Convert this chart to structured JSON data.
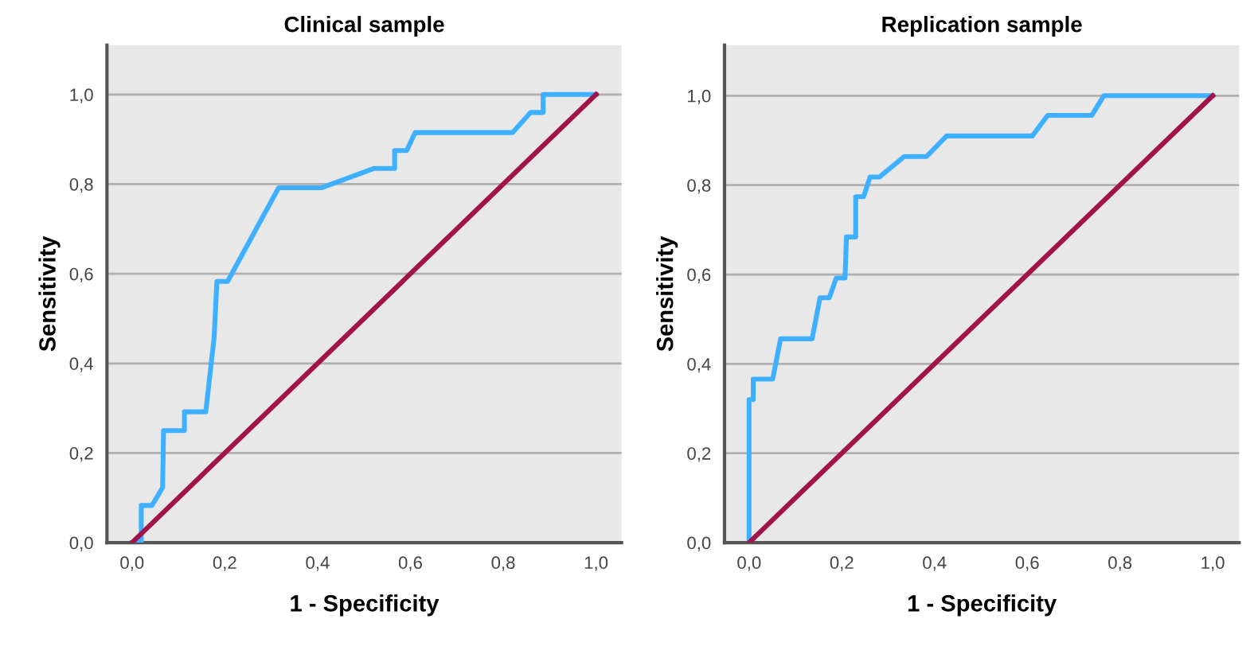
{
  "chart_data": [
    {
      "type": "line",
      "title": "Clinical sample",
      "xlabel": "1 - Specificity",
      "ylabel": "Sensitivity",
      "series": [
        {
          "color": "#3fb0ff",
          "x": [
            0,
            0.02,
            0.02,
            0.043,
            0.066,
            0.068,
            0.113,
            0.113,
            0.159,
            0.177,
            0.183,
            0.206,
            0.316,
            0.409,
            0.522,
            0.566,
            0.566,
            0.592,
            0.61,
            0.82,
            0.859,
            0.886,
            0.886,
            1
          ],
          "values": [
            0,
            0,
            0.083,
            0.083,
            0.123,
            0.25,
            0.25,
            0.292,
            0.292,
            0.458,
            0.583,
            0.583,
            0.792,
            0.792,
            0.835,
            0.835,
            0.875,
            0.875,
            0.915,
            0.915,
            0.96,
            0.96,
            1,
            1
          ]
        },
        {
          "color": "#a0144a",
          "x": [
            0,
            1
          ],
          "values": [
            0,
            1
          ]
        }
      ],
      "xlim": [
        -0.054,
        1.055
      ],
      "ylim": [
        0,
        1.11
      ],
      "xticks": [
        {
          "value": 0,
          "label": "0,0"
        },
        {
          "value": 0.2,
          "label": "0,2"
        },
        {
          "value": 0.4,
          "label": "0,4"
        },
        {
          "value": 0.6,
          "label": "0,6"
        },
        {
          "value": 0.8,
          "label": "0,8"
        },
        {
          "value": 1,
          "label": "1,0"
        }
      ],
      "yticks": [
        {
          "value": 0,
          "label": "0,0"
        },
        {
          "value": 0.2,
          "label": "0,2"
        },
        {
          "value": 0.4,
          "label": "0,4"
        },
        {
          "value": 0.6,
          "label": "0,6"
        },
        {
          "value": 0.8,
          "label": "0,8"
        },
        {
          "value": 1,
          "label": "1,0"
        }
      ],
      "grid": "y",
      "legend": false,
      "line_style": "solid",
      "marker": "none"
    },
    {
      "type": "line",
      "title": "Replication sample",
      "xlabel": "1 - Specificity",
      "ylabel": "Sensitivity",
      "series": [
        {
          "color": "#3fb0ff",
          "x": [
            0,
            0,
            0.009,
            0.009,
            0.051,
            0.068,
            0.136,
            0.153,
            0.173,
            0.188,
            0.207,
            0.21,
            0.23,
            0.23,
            0.247,
            0.261,
            0.281,
            0.335,
            0.383,
            0.426,
            0.611,
            0.644,
            0.739,
            0.765,
            1
          ],
          "values": [
            0,
            0.32,
            0.32,
            0.366,
            0.366,
            0.456,
            0.456,
            0.548,
            0.548,
            0.592,
            0.592,
            0.684,
            0.684,
            0.774,
            0.774,
            0.818,
            0.818,
            0.864,
            0.864,
            0.91,
            0.91,
            0.956,
            0.956,
            1,
            1
          ]
        },
        {
          "color": "#a0144a",
          "x": [
            0,
            1
          ],
          "values": [
            0,
            1
          ]
        }
      ],
      "xlim": [
        -0.053,
        1.057
      ],
      "ylim": [
        0,
        1.113
      ],
      "xticks": [
        {
          "value": 0,
          "label": "0,0"
        },
        {
          "value": 0.2,
          "label": "0,2"
        },
        {
          "value": 0.4,
          "label": "0,4"
        },
        {
          "value": 0.6,
          "label": "0,6"
        },
        {
          "value": 0.8,
          "label": "0,8"
        },
        {
          "value": 1,
          "label": "1,0"
        }
      ],
      "yticks": [
        {
          "value": 0,
          "label": "0,0"
        },
        {
          "value": 0.2,
          "label": "0,2"
        },
        {
          "value": 0.4,
          "label": "0,4"
        },
        {
          "value": 0.6,
          "label": "0,6"
        },
        {
          "value": 0.8,
          "label": "0,8"
        },
        {
          "value": 1,
          "label": "1,0"
        }
      ],
      "grid": "y",
      "legend": false,
      "line_style": "solid",
      "marker": "none"
    }
  ]
}
